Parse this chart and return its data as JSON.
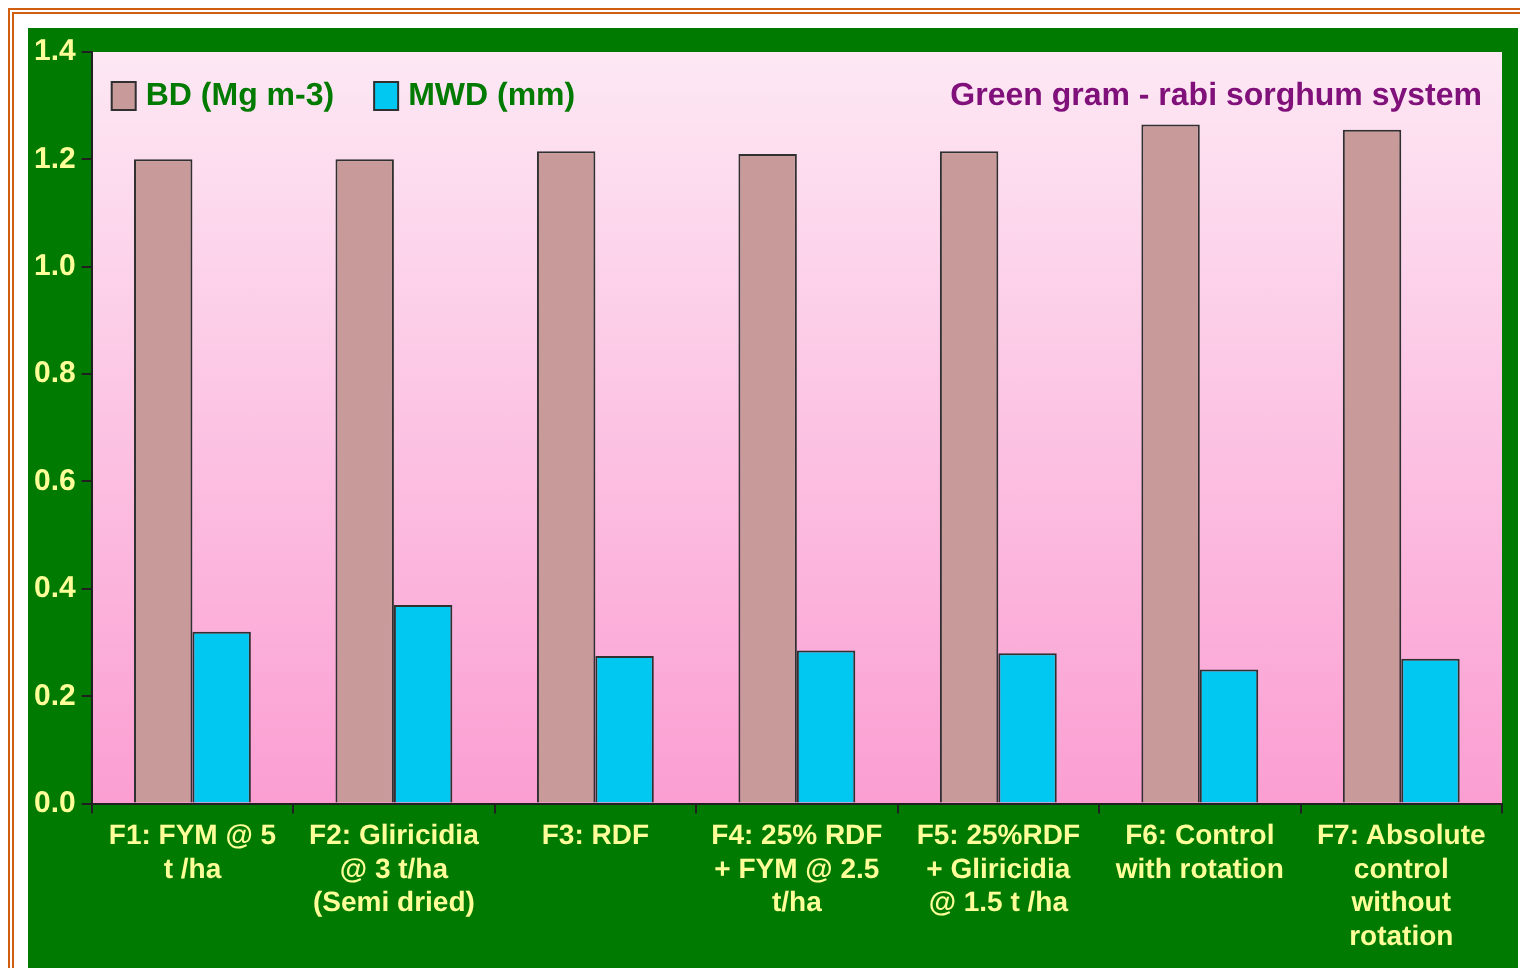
{
  "chart_data": {
    "type": "bar",
    "title": "Green gram - rabi sorghum system",
    "categories": [
      "F1: FYM @ 5 t /ha",
      "F2: Gliricidia @ 3 t/ha (Semi dried)",
      "F3: RDF",
      "F4: 25% RDF + FYM @ 2.5 t/ha",
      "F5: 25%RDF + Gliricidia @ 1.5 t /ha",
      "F6: Control with rotation",
      "F7: Absolute control without rotation"
    ],
    "series": [
      {
        "name": "BD (Mg m-3)",
        "color": "#c89a9a",
        "values": [
          1.2,
          1.2,
          1.215,
          1.21,
          1.215,
          1.265,
          1.255
        ]
      },
      {
        "name": "MWD (mm)",
        "color": "#00c8f0",
        "values": [
          0.32,
          0.37,
          0.275,
          0.285,
          0.28,
          0.25,
          0.27
        ]
      }
    ],
    "ylim": [
      0,
      1.4
    ],
    "yticks": [
      {
        "value": 0,
        "label": "0.0"
      },
      {
        "value": 0.2,
        "label": "0.2"
      },
      {
        "value": 0.4,
        "label": "0.4"
      },
      {
        "value": 0.6,
        "label": "0.6"
      },
      {
        "value": 0.8,
        "label": "0.8"
      },
      {
        "value": 1.0,
        "label": "1.0"
      },
      {
        "value": 1.2,
        "label": "1.2"
      },
      {
        "value": 1.4,
        "label": "1.4"
      }
    ],
    "grid": false,
    "legend": "top left"
  }
}
